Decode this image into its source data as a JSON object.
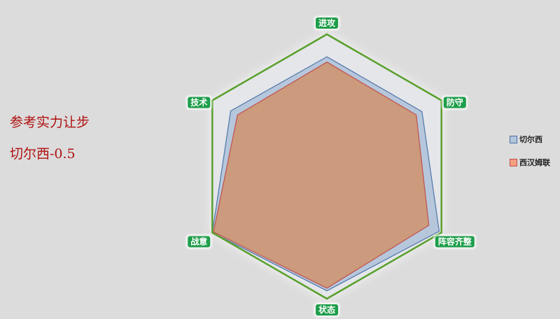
{
  "notes": {
    "line1": "参考实力让步",
    "line2": "切尔西-0.5"
  },
  "chart_data": {
    "type": "radar",
    "axes": [
      "进攻",
      "防守",
      "阵容齐整",
      "状态",
      "战意",
      "技术"
    ],
    "range": [
      0,
      100
    ],
    "series": [
      {
        "name": "切尔西",
        "values": [
          83,
          83,
          98,
          94,
          100,
          84
        ],
        "fill": "#b4c6dc",
        "stroke": "#4a6fa5"
      },
      {
        "name": "西汉姆联",
        "values": [
          79,
          78,
          89,
          92,
          99,
          78
        ],
        "fill": "#cc9a7c",
        "stroke": "#c0504d"
      }
    ],
    "frame_color": "#5aa02c",
    "label_color": "#1e9e4a",
    "legend_position": "right"
  }
}
